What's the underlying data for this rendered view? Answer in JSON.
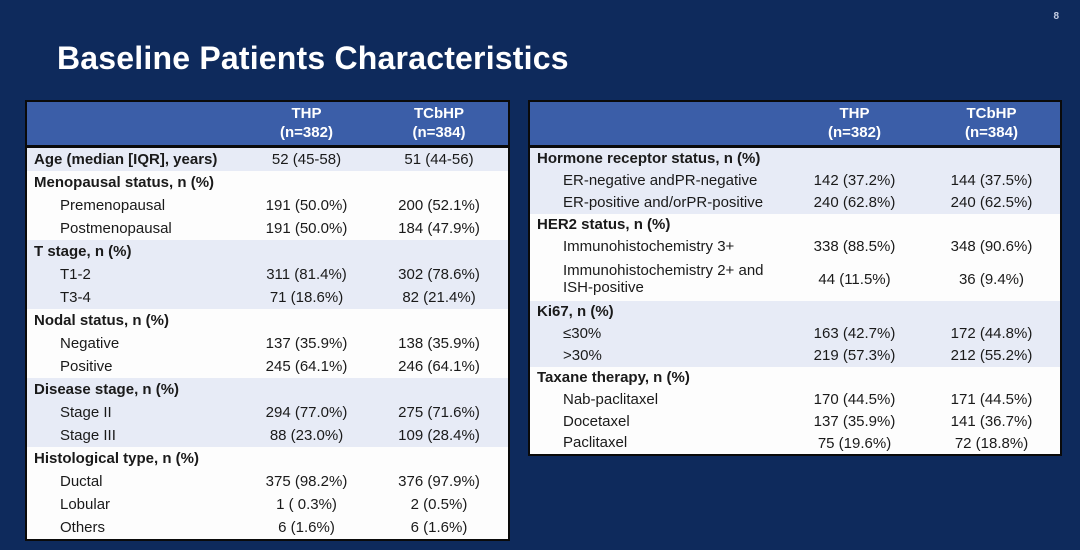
{
  "page": {
    "number": "8",
    "title": "Baseline Patients Characteristics"
  },
  "colors": {
    "background": "#0e2a5c",
    "header_blue": "#3b5ea8",
    "row_light": "#e7ebf6",
    "row_white": "#fdfdfd",
    "text": "#1a1a1a",
    "title_text": "#ffffff"
  },
  "tables": [
    {
      "name": "left",
      "cols": [
        {
          "line1": "THP",
          "line2": "(n=382)"
        },
        {
          "line1": "TCbHP",
          "line2": "(n=384)"
        }
      ],
      "rows": [
        {
          "shade": "light",
          "bold": true,
          "indent": false,
          "label": "Age (median [IQR], years)",
          "values": [
            "52 (45-58)",
            "51 (44-56)"
          ]
        },
        {
          "shade": "white",
          "bold": true,
          "indent": false,
          "label": "Menopausal status, n (%)",
          "values": [
            "",
            ""
          ]
        },
        {
          "shade": "white",
          "bold": false,
          "indent": true,
          "label": "Premenopausal",
          "values": [
            "191 (50.0%)",
            "200 (52.1%)"
          ]
        },
        {
          "shade": "white",
          "bold": false,
          "indent": true,
          "label": "Postmenopausal",
          "values": [
            "191 (50.0%)",
            "184 (47.9%)"
          ]
        },
        {
          "shade": "light",
          "bold": true,
          "indent": false,
          "label": "T stage, n (%)",
          "values": [
            "",
            ""
          ]
        },
        {
          "shade": "light",
          "bold": false,
          "indent": true,
          "label": "T1-2",
          "values": [
            "311 (81.4%)",
            "302 (78.6%)"
          ]
        },
        {
          "shade": "light",
          "bold": false,
          "indent": true,
          "label": "T3-4",
          "values": [
            "71 (18.6%)",
            "82 (21.4%)"
          ]
        },
        {
          "shade": "white",
          "bold": true,
          "indent": false,
          "label": "Nodal status, n (%)",
          "values": [
            "",
            ""
          ]
        },
        {
          "shade": "white",
          "bold": false,
          "indent": true,
          "label": "Negative",
          "values": [
            "137 (35.9%)",
            "138 (35.9%)"
          ]
        },
        {
          "shade": "white",
          "bold": false,
          "indent": true,
          "label": "Positive",
          "values": [
            "245 (64.1%)",
            "246 (64.1%)"
          ]
        },
        {
          "shade": "light",
          "bold": true,
          "indent": false,
          "label": "Disease stage, n (%)",
          "values": [
            "",
            ""
          ]
        },
        {
          "shade": "light",
          "bold": false,
          "indent": true,
          "label": "Stage II",
          "values": [
            "294 (77.0%)",
            "275 (71.6%)"
          ]
        },
        {
          "shade": "light",
          "bold": false,
          "indent": true,
          "label": "Stage III",
          "values": [
            "88 (23.0%)",
            "109 (28.4%)"
          ]
        },
        {
          "shade": "white",
          "bold": true,
          "indent": false,
          "label": "Histological type, n (%)",
          "values": [
            "",
            ""
          ]
        },
        {
          "shade": "white",
          "bold": false,
          "indent": true,
          "label": "Ductal",
          "values": [
            "375 (98.2%)",
            "376 (97.9%)"
          ]
        },
        {
          "shade": "white",
          "bold": false,
          "indent": true,
          "label": "Lobular",
          "values": [
            "1 ( 0.3%)",
            "2 (0.5%)"
          ]
        },
        {
          "shade": "white",
          "bold": false,
          "indent": true,
          "label": "Others",
          "values": [
            "6 (1.6%)",
            "6 (1.6%)"
          ]
        }
      ]
    },
    {
      "name": "right",
      "cols": [
        {
          "line1": "THP",
          "line2": "(n=382)"
        },
        {
          "line1": "TCbHP",
          "line2": "(n=384)"
        }
      ],
      "rows": [
        {
          "shade": "light",
          "bold": true,
          "indent": false,
          "label": "Hormone receptor status, n (%)",
          "values": [
            "",
            ""
          ]
        },
        {
          "shade": "light",
          "bold": false,
          "indent": true,
          "label": "ER-negative andPR-negative",
          "values": [
            "142 (37.2%)",
            "144 (37.5%)"
          ]
        },
        {
          "shade": "light",
          "bold": false,
          "indent": true,
          "label": "ER-positive and/orPR-positive",
          "values": [
            "240 (62.8%)",
            "240 (62.5%)"
          ]
        },
        {
          "shade": "white",
          "bold": true,
          "indent": false,
          "label": "HER2 status, n (%)",
          "values": [
            "",
            ""
          ]
        },
        {
          "shade": "white",
          "bold": false,
          "indent": true,
          "label": "Immunohistochemistry 3+",
          "values": [
            "338 (88.5%)",
            "348 (90.6%)"
          ]
        },
        {
          "shade": "white",
          "bold": false,
          "indent": true,
          "label": "Immunohistochemistry 2+ and ISH-positive",
          "values": [
            "44 (11.5%)",
            "36 (9.4%)"
          ],
          "tall": true
        },
        {
          "shade": "light",
          "bold": true,
          "indent": false,
          "label": "Ki67, n (%)",
          "values": [
            "",
            ""
          ]
        },
        {
          "shade": "light",
          "bold": false,
          "indent": true,
          "label": "≤30%",
          "values": [
            "163 (42.7%)",
            "172 (44.8%)"
          ]
        },
        {
          "shade": "light",
          "bold": false,
          "indent": true,
          "label": ">30%",
          "values": [
            "219 (57.3%)",
            "212 (55.2%)"
          ]
        },
        {
          "shade": "white",
          "bold": true,
          "indent": false,
          "label": "Taxane therapy, n (%)",
          "values": [
            "",
            ""
          ]
        },
        {
          "shade": "white",
          "bold": false,
          "indent": true,
          "label": "Nab-paclitaxel",
          "values": [
            "170 (44.5%)",
            "171 (44.5%)"
          ]
        },
        {
          "shade": "white",
          "bold": false,
          "indent": true,
          "label": "Docetaxel",
          "values": [
            "137 (35.9%)",
            "141 (36.7%)"
          ]
        },
        {
          "shade": "white",
          "bold": false,
          "indent": true,
          "label": "Paclitaxel",
          "values": [
            "75 (19.6%)",
            "72 (18.8%)"
          ]
        }
      ]
    }
  ]
}
